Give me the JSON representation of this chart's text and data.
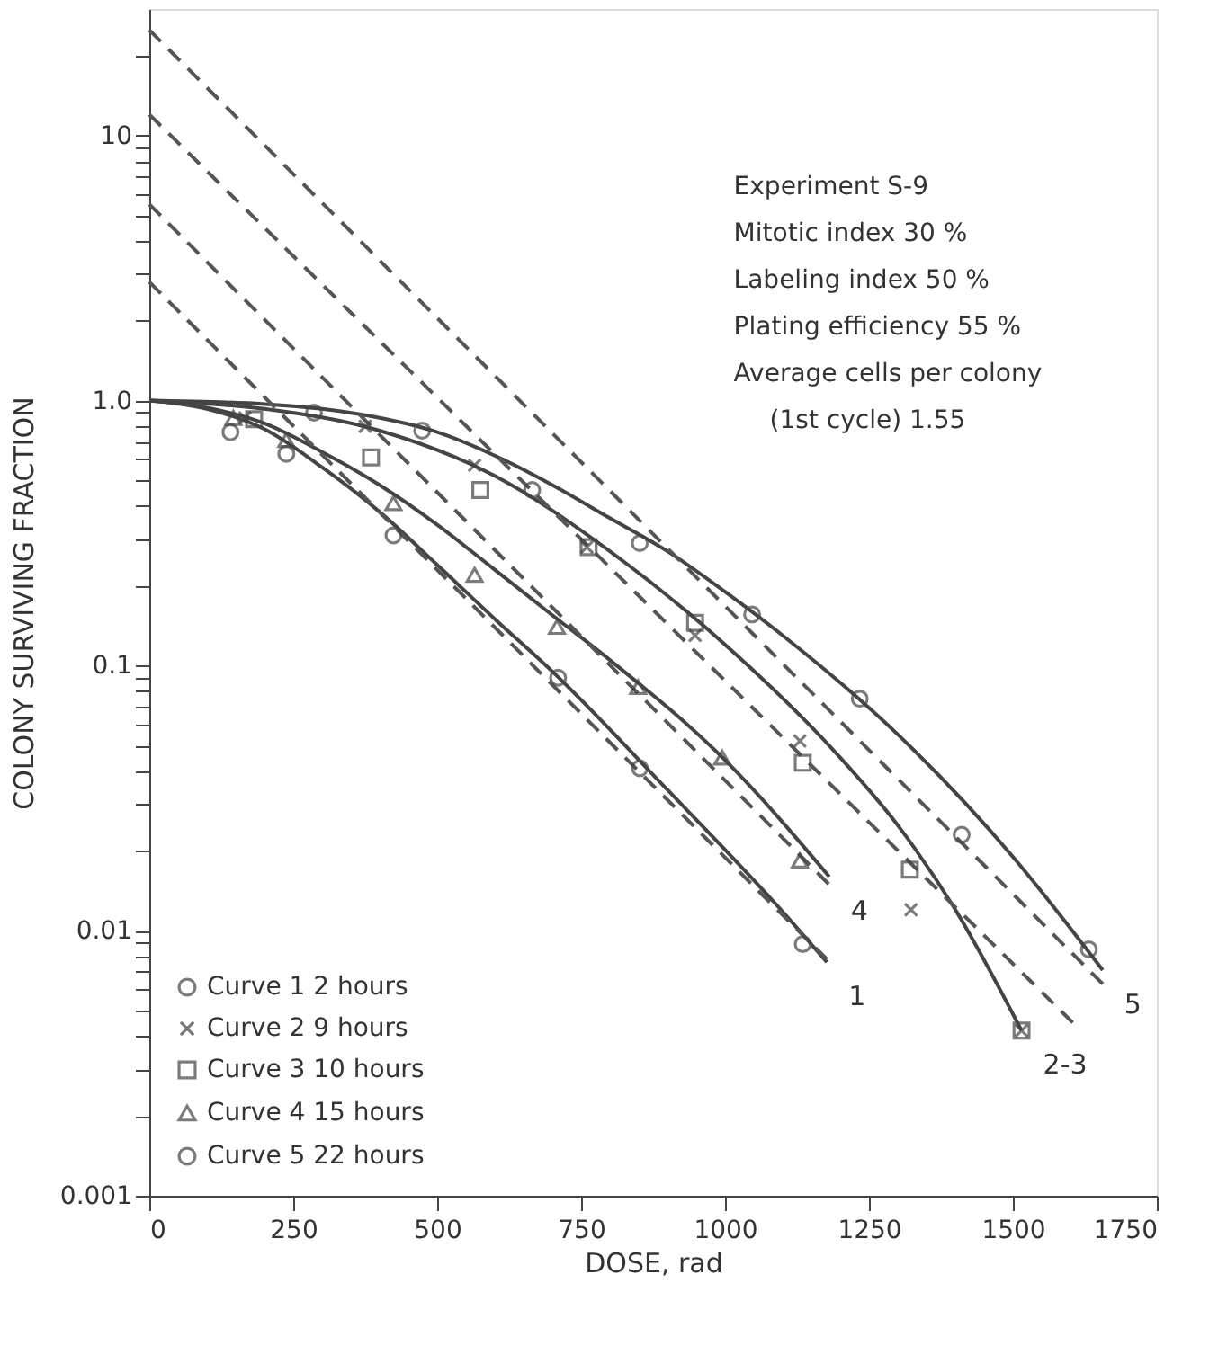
{
  "chart_data": {
    "type": "scatter",
    "xlabel": "DOSE, rad",
    "ylabel": "COLONY SURVIVING FRACTION",
    "xlim": [
      0,
      1750
    ],
    "xticks": [
      0,
      250,
      500,
      750,
      1000,
      1250,
      1500,
      1750
    ],
    "ylim": [
      0.001,
      30
    ],
    "log": "y",
    "yticks": [
      {
        "value": 0.001,
        "label": "0.001"
      },
      {
        "value": 0.002,
        "label": null
      },
      {
        "value": 0.003,
        "label": null
      },
      {
        "value": 0.004,
        "label": null
      },
      {
        "value": 0.005,
        "label": null
      },
      {
        "value": 0.006,
        "label": null
      },
      {
        "value": 0.007,
        "label": null
      },
      {
        "value": 0.008,
        "label": null
      },
      {
        "value": 0.009,
        "label": null
      },
      {
        "value": 0.01,
        "label": "0.01"
      },
      {
        "value": 0.02,
        "label": null
      },
      {
        "value": 0.03,
        "label": null
      },
      {
        "value": 0.04,
        "label": null
      },
      {
        "value": 0.05,
        "label": null
      },
      {
        "value": 0.06,
        "label": null
      },
      {
        "value": 0.07,
        "label": null
      },
      {
        "value": 0.08,
        "label": null
      },
      {
        "value": 0.09,
        "label": null
      },
      {
        "value": 0.1,
        "label": "0.1"
      },
      {
        "value": 0.2,
        "label": null
      },
      {
        "value": 0.3,
        "label": null
      },
      {
        "value": 0.4,
        "label": null
      },
      {
        "value": 0.5,
        "label": null
      },
      {
        "value": 0.6,
        "label": null
      },
      {
        "value": 0.7,
        "label": null
      },
      {
        "value": 0.8,
        "label": null
      },
      {
        "value": 0.9,
        "label": null
      },
      {
        "value": 1,
        "label": "1.0"
      },
      {
        "value": 2,
        "label": null
      },
      {
        "value": 3,
        "label": null
      },
      {
        "value": 4,
        "label": null
      },
      {
        "value": 5,
        "label": null
      },
      {
        "value": 6,
        "label": null
      },
      {
        "value": 7,
        "label": null
      },
      {
        "value": 8,
        "label": null
      },
      {
        "value": 9,
        "label": null
      },
      {
        "value": 10,
        "label": "10"
      },
      {
        "value": 20,
        "label": null
      }
    ],
    "grid": false,
    "legend": "bottom left",
    "series": [
      {
        "name": "Curve 1 2 hours",
        "marker": "circle",
        "color": "#444444",
        "x": [
          141,
          238,
          424,
          710,
          852,
          1135
        ],
        "values": [
          0.76,
          0.63,
          0.31,
          0.09,
          0.041,
          0.0089
        ]
      },
      {
        "name": "Curve 2 9 hours",
        "marker": "cross",
        "color": "#444444",
        "x": [
          166,
          375,
          565,
          760,
          948,
          1130,
          1323,
          1515
        ],
        "values": [
          0.86,
          0.8,
          0.57,
          0.28,
          0.13,
          0.052,
          0.012,
          0.0042
        ]
      },
      {
        "name": "Curve 3 10 hours",
        "marker": "square",
        "color": "#444444",
        "x": [
          182,
          385,
          575,
          763,
          948,
          1135,
          1321,
          1515
        ],
        "values": [
          0.85,
          0.61,
          0.46,
          0.28,
          0.145,
          0.043,
          0.017,
          0.0042
        ]
      },
      {
        "name": "Curve 4 15 hours",
        "marker": "triangle",
        "color": "#444444",
        "x": [
          146,
          238,
          424,
          565,
          708,
          849,
          995,
          1130
        ],
        "values": [
          0.86,
          0.71,
          0.41,
          0.22,
          0.14,
          0.083,
          0.045,
          0.0184
        ]
      },
      {
        "name": "Curve 5 22 hours",
        "marker": "circle",
        "color": "#444444",
        "x": [
          286,
          474,
          665,
          852,
          1047,
          1234,
          1411,
          1632
        ],
        "values": [
          0.9,
          0.77,
          0.46,
          0.29,
          0.156,
          0.075,
          0.023,
          0.0085
        ]
      },
      {
        "type": "line",
        "line_style": "solid",
        "color": "#444444",
        "x": [
          0,
          100,
          200,
          300,
          400,
          500,
          600,
          700,
          900,
          1100,
          1177
        ],
        "values": [
          1,
          0.93,
          0.78,
          0.56,
          0.38,
          0.24,
          0.15,
          0.095,
          0.034,
          0.0118,
          0.0076
        ]
      },
      {
        "type": "line",
        "line_style": "solid",
        "color": "#444444",
        "x": [
          0,
          100,
          200,
          300,
          400,
          500,
          600,
          700,
          800,
          1000,
          1181
        ],
        "values": [
          1,
          0.94,
          0.82,
          0.64,
          0.48,
          0.34,
          0.23,
          0.155,
          0.105,
          0.044,
          0.016
        ]
      },
      {
        "type": "line",
        "line_style": "solid",
        "color": "#444444",
        "x": [
          0,
          200,
          400,
          600,
          800,
          1000,
          1200,
          1300,
          1400,
          1515
        ],
        "values": [
          1,
          0.93,
          0.77,
          0.52,
          0.27,
          0.12,
          0.045,
          0.025,
          0.012,
          0.0042
        ]
      },
      {
        "type": "line",
        "line_style": "solid",
        "color": "#444444",
        "x": [
          0,
          200,
          300,
          400,
          500,
          600,
          700,
          800,
          900,
          1000,
          1100,
          1300,
          1500,
          1656
        ],
        "values": [
          1,
          0.97,
          0.93,
          0.86,
          0.76,
          0.62,
          0.48,
          0.36,
          0.27,
          0.19,
          0.13,
          0.055,
          0.019,
          0.0071
        ]
      },
      {
        "type": "line",
        "line_style": "dashed",
        "color": "#555555",
        "x": [
          0,
          1177
        ],
        "values": [
          2.8,
          0.0078
        ]
      },
      {
        "type": "line",
        "line_style": "dashed",
        "color": "#555555",
        "x": [
          0,
          1180
        ],
        "values": [
          5.5,
          0.015
        ]
      },
      {
        "type": "line",
        "line_style": "dashed",
        "color": "#555555",
        "x": [
          0,
          1604
        ],
        "values": [
          12,
          0.0045
        ]
      },
      {
        "type": "line",
        "line_style": "dashed",
        "color": "#555555",
        "x": [
          0,
          1656
        ],
        "values": [
          25,
          0.0063
        ]
      }
    ],
    "annotations": [
      "Experiment  S-9",
      "Mitotic index  30 %",
      "Labeling index  50 %",
      "Plating efficiency  55 %",
      "Average cells per colony",
      "(1st cycle)  1.55",
      {
        "text": "1",
        "x": 1177,
        "y": 0.0076
      },
      {
        "text": "4",
        "x": 1181,
        "y": 0.016
      },
      {
        "text": "2-3",
        "x": 1515,
        "y": 0.0042
      },
      {
        "text": "5",
        "x": 1656,
        "y": 0.0071
      }
    ]
  }
}
